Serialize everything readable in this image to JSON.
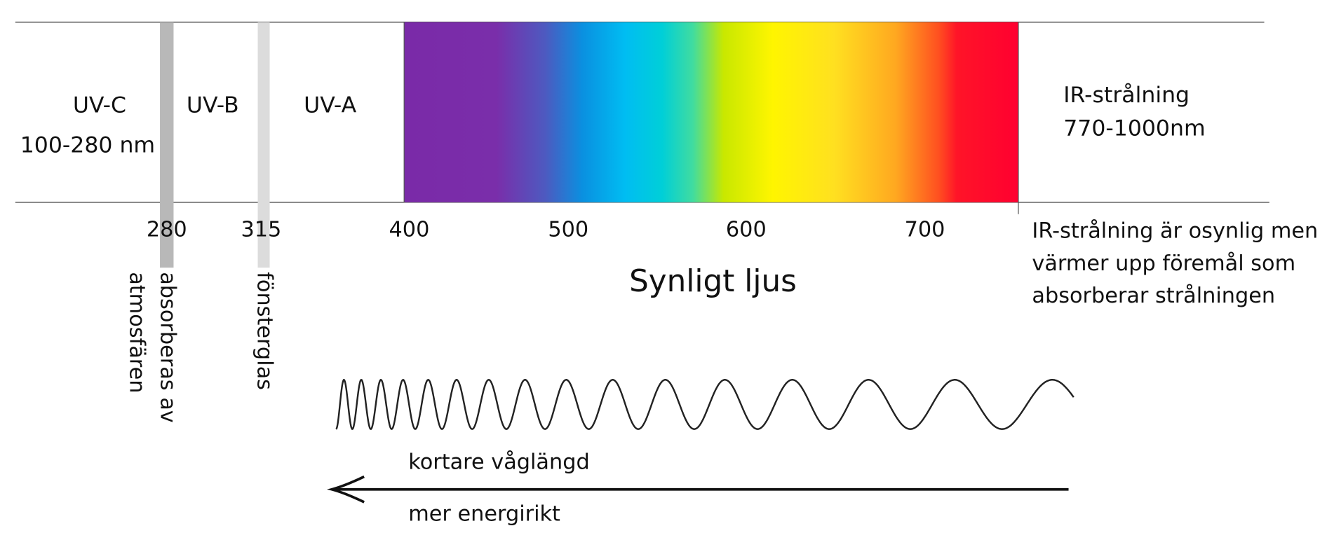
{
  "bands": {
    "uvc": "UV-C",
    "uvc_range": "100-280 nm",
    "uvb": "UV-B",
    "uva": "UV-A",
    "ir": "IR-strålning",
    "ir_range": "770-1000nm"
  },
  "ticks": [
    "280",
    "315",
    "400",
    "500",
    "600",
    "700"
  ],
  "visible_label": "Synligt ljus",
  "ir_note": [
    "IR-strålning är osynlig men",
    "värmer upp föremål som",
    "absorberar strålningen"
  ],
  "vertical_notes": {
    "absorbed": "absorberas av",
    "atmosphere": "atmosfären",
    "window": "fönsterglas"
  },
  "arrow": {
    "top": "kortare våglängd",
    "bottom": "mer energirikt"
  }
}
